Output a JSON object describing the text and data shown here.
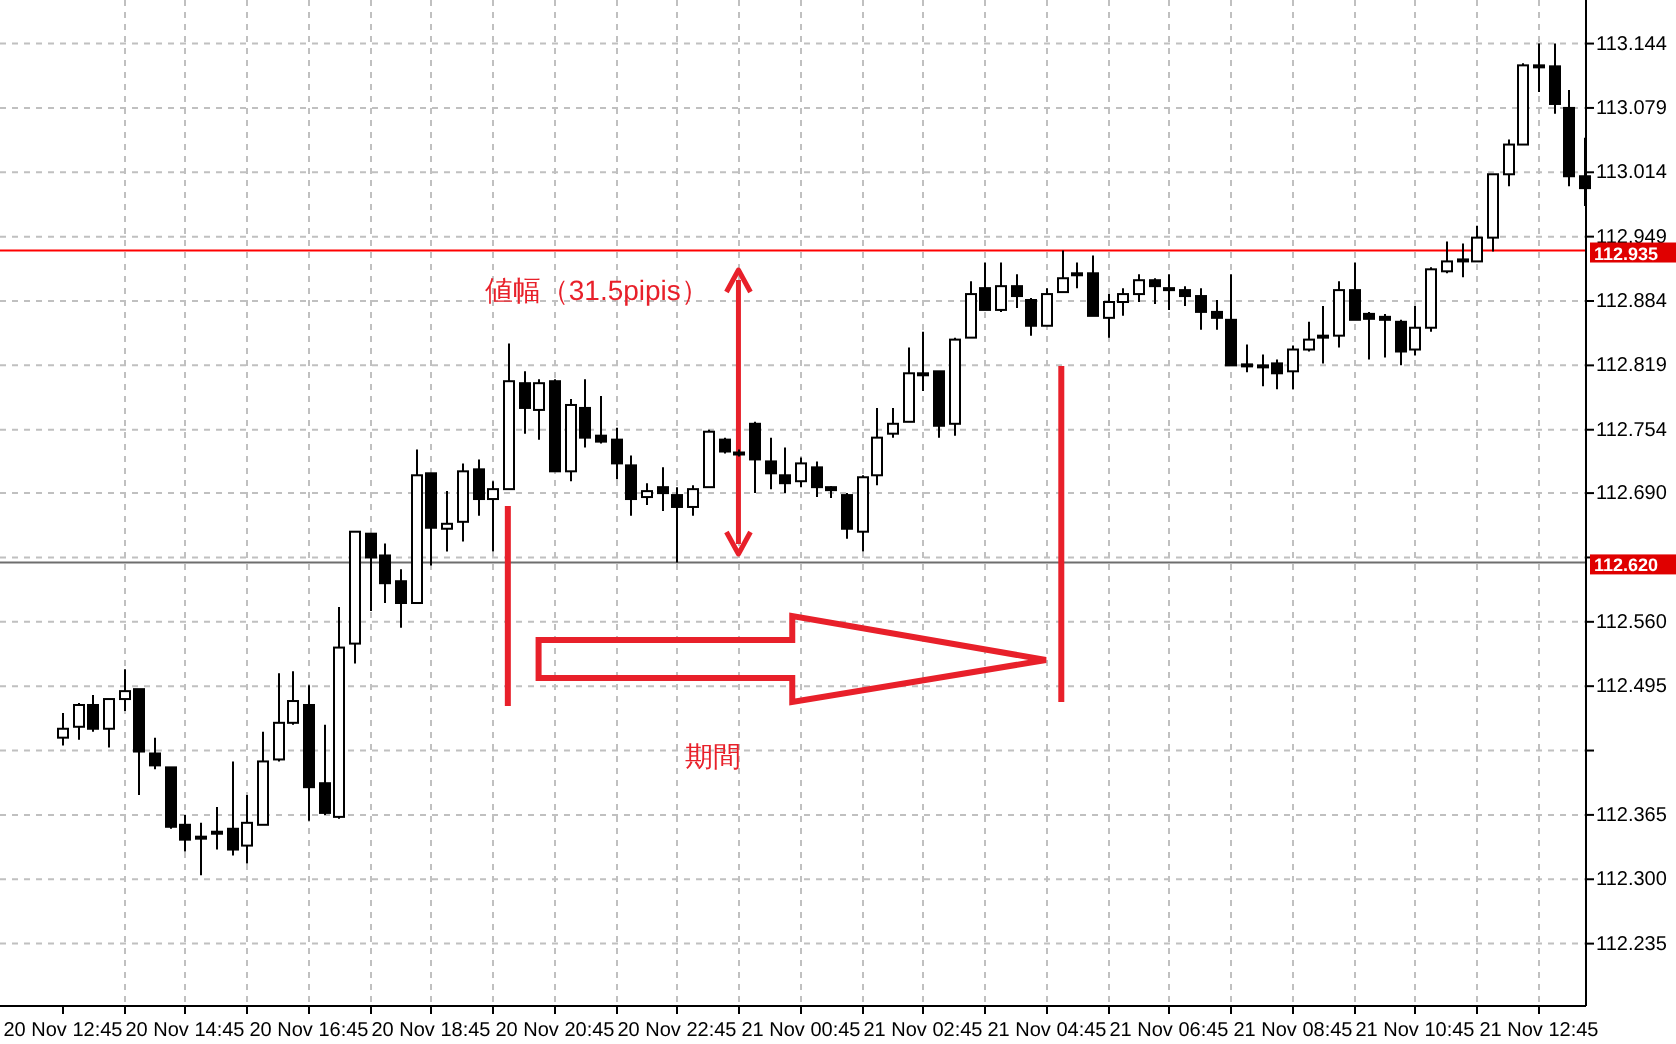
{
  "chart_data": {
    "type": "candlestick",
    "annotations": [
      "値幅（31.5pipis）",
      "期間"
    ],
    "categories": [
      "20 Nov 12:45",
      null,
      null,
      null,
      null,
      null,
      null,
      null,
      "20 Nov 14:45",
      null,
      null,
      null,
      null,
      null,
      null,
      null,
      "20 Nov 16:45",
      null,
      null,
      null,
      null,
      null,
      null,
      null,
      "20 Nov 18:45",
      null,
      null,
      null,
      null,
      null,
      null,
      null,
      "20 Nov 20:45",
      null,
      null,
      null,
      null,
      null,
      null,
      null,
      "20 Nov 22:45",
      null,
      null,
      null,
      null,
      null,
      null,
      null,
      "21 Nov 00:45",
      null,
      null,
      null,
      null,
      null,
      null,
      null,
      "21 Nov 02:45",
      null,
      null,
      null,
      null,
      null,
      null,
      null,
      "21 Nov 04:45",
      null,
      null,
      null,
      null,
      null,
      null,
      null,
      "21 Nov 06:45",
      null,
      null,
      null,
      null,
      null,
      null,
      null,
      "21 Nov 08:45",
      null,
      null,
      null,
      null,
      null,
      null,
      null,
      "21 Nov 10:45",
      null,
      null,
      null,
      null,
      null,
      null,
      null,
      "21 Nov 12:45",
      null,
      null,
      null
    ],
    "ohlc": [
      [
        112.443,
        112.468,
        112.435,
        112.452
      ],
      [
        112.454,
        112.478,
        112.441,
        112.476
      ],
      [
        112.476,
        112.486,
        112.449,
        112.452
      ],
      [
        112.452,
        112.482,
        112.433,
        112.482
      ],
      [
        112.482,
        112.512,
        112.47,
        112.49
      ],
      [
        112.492,
        112.492,
        112.385,
        112.429
      ],
      [
        112.427,
        112.443,
        112.411,
        112.415
      ],
      [
        112.413,
        112.413,
        112.351,
        112.353
      ],
      [
        112.355,
        112.365,
        112.328,
        112.34
      ],
      [
        112.343,
        112.357,
        112.304,
        112.342
      ],
      [
        112.348,
        112.373,
        112.33,
        112.346
      ],
      [
        112.351,
        112.419,
        112.324,
        112.33
      ],
      [
        112.334,
        112.385,
        112.316,
        112.357
      ],
      [
        112.355,
        112.449,
        112.355,
        112.419
      ],
      [
        112.421,
        112.508,
        112.419,
        112.458
      ],
      [
        112.458,
        112.51,
        112.456,
        112.48
      ],
      [
        112.476,
        112.496,
        112.359,
        112.393
      ],
      [
        112.397,
        112.456,
        112.365,
        112.367
      ],
      [
        112.363,
        112.575,
        112.361,
        112.534
      ],
      [
        112.538,
        112.651,
        112.518,
        112.651
      ],
      [
        112.649,
        112.649,
        112.571,
        112.625
      ],
      [
        112.627,
        112.639,
        112.579,
        112.599
      ],
      [
        112.601,
        112.613,
        112.554,
        112.579
      ],
      [
        112.579,
        112.734,
        112.579,
        112.708
      ],
      [
        112.71,
        112.71,
        112.617,
        112.655
      ],
      [
        112.654,
        112.692,
        112.631,
        112.659
      ],
      [
        112.661,
        112.72,
        112.641,
        112.712
      ],
      [
        112.714,
        112.724,
        112.667,
        112.684
      ],
      [
        112.684,
        112.702,
        112.631,
        112.694
      ],
      [
        112.694,
        112.841,
        112.694,
        112.803
      ],
      [
        112.801,
        112.813,
        112.75,
        112.776
      ],
      [
        112.774,
        112.805,
        112.744,
        112.801
      ],
      [
        112.803,
        112.805,
        112.712,
        112.712
      ],
      [
        112.712,
        112.785,
        112.702,
        112.779
      ],
      [
        112.776,
        112.805,
        112.736,
        112.746
      ],
      [
        112.748,
        112.788,
        112.74,
        112.742
      ],
      [
        112.744,
        112.756,
        112.704,
        112.72
      ],
      [
        112.718,
        112.728,
        112.667,
        112.684
      ],
      [
        112.686,
        112.7,
        112.678,
        112.692
      ],
      [
        112.696,
        112.716,
        112.672,
        112.69
      ],
      [
        112.688,
        112.696,
        112.62,
        112.676
      ],
      [
        112.676,
        112.698,
        112.667,
        112.694
      ],
      [
        112.696,
        112.754,
        112.696,
        112.752
      ],
      [
        112.744,
        112.746,
        112.73,
        112.732
      ],
      [
        112.731,
        112.734,
        112.727,
        112.729
      ],
      [
        112.76,
        112.762,
        112.69,
        112.724
      ],
      [
        112.722,
        112.746,
        112.694,
        112.71
      ],
      [
        112.708,
        112.736,
        112.69,
        112.7
      ],
      [
        112.702,
        112.726,
        112.696,
        112.72
      ],
      [
        112.716,
        112.722,
        112.686,
        112.696
      ],
      [
        112.696,
        112.697,
        112.685,
        112.693
      ],
      [
        112.688,
        112.69,
        112.644,
        112.654
      ],
      [
        112.651,
        112.708,
        112.631,
        112.706
      ],
      [
        112.708,
        112.776,
        112.698,
        112.746
      ],
      [
        112.75,
        112.776,
        112.746,
        112.76
      ],
      [
        112.762,
        112.837,
        112.762,
        112.811
      ],
      [
        112.81,
        112.853,
        112.793,
        112.811
      ],
      [
        112.813,
        112.813,
        112.746,
        112.758
      ],
      [
        112.76,
        112.847,
        112.748,
        112.845
      ],
      [
        112.847,
        112.904,
        112.847,
        112.891
      ],
      [
        112.897,
        112.923,
        112.875,
        112.875
      ],
      [
        112.875,
        112.923,
        112.873,
        112.899
      ],
      [
        112.899,
        112.911,
        112.877,
        112.889
      ],
      [
        112.885,
        112.887,
        112.849,
        112.859
      ],
      [
        112.859,
        112.897,
        112.859,
        112.891
      ],
      [
        112.893,
        112.935,
        112.893,
        112.907
      ],
      [
        112.911,
        112.923,
        112.897,
        112.912
      ],
      [
        112.912,
        112.93,
        112.869,
        112.869
      ],
      [
        112.867,
        112.891,
        112.847,
        112.883
      ],
      [
        112.883,
        112.897,
        112.869,
        112.891
      ],
      [
        112.891,
        112.911,
        112.883,
        112.905
      ],
      [
        112.905,
        112.907,
        112.881,
        112.899
      ],
      [
        112.897,
        112.911,
        112.875,
        112.895
      ],
      [
        112.895,
        112.899,
        112.879,
        112.889
      ],
      [
        112.889,
        112.897,
        112.855,
        112.873
      ],
      [
        112.873,
        112.885,
        112.855,
        112.867
      ],
      [
        112.865,
        112.911,
        112.819,
        112.819
      ],
      [
        112.82,
        112.84,
        112.812,
        112.819
      ],
      [
        112.819,
        112.83,
        112.798,
        112.818
      ],
      [
        112.821,
        112.825,
        112.795,
        112.811
      ],
      [
        112.813,
        112.839,
        112.795,
        112.835
      ],
      [
        112.835,
        112.863,
        112.833,
        112.845
      ],
      [
        112.848,
        112.879,
        112.821,
        112.849
      ],
      [
        112.849,
        112.904,
        112.837,
        112.895
      ],
      [
        112.895,
        112.923,
        112.865,
        112.865
      ],
      [
        112.871,
        112.873,
        112.825,
        112.866
      ],
      [
        112.868,
        112.871,
        112.827,
        112.865
      ],
      [
        112.863,
        112.865,
        112.819,
        112.833
      ],
      [
        112.835,
        112.879,
        112.829,
        112.857
      ],
      [
        112.857,
        112.918,
        112.853,
        112.916
      ],
      [
        112.914,
        112.944,
        112.912,
        112.924
      ],
      [
        112.925,
        112.942,
        112.908,
        112.926
      ],
      [
        112.924,
        112.96,
        112.924,
        112.948
      ],
      [
        112.948,
        113.012,
        112.934,
        113.012
      ],
      [
        113.012,
        113.047,
        113.0,
        113.042
      ],
      [
        113.042,
        113.124,
        113.042,
        113.122
      ],
      [
        113.121,
        113.144,
        113.095,
        113.122
      ],
      [
        113.121,
        113.144,
        113.073,
        113.083
      ],
      [
        113.079,
        113.097,
        113.0,
        113.01
      ],
      [
        113.01,
        113.049,
        112.98,
        112.998
      ]
    ],
    "ylim": [
      112.172,
      113.188
    ],
    "yticks": [
      113.144,
      113.079,
      113.014,
      112.949,
      112.884,
      112.819,
      112.754,
      {
        "value": 112.69,
        "label": "112.690"
      },
      {
        "value": 112.625,
        "label": null
      },
      {
        "value": 112.56,
        "label": "112.560"
      },
      112.495,
      {
        "value": 112.43,
        "label": null
      },
      112.365,
      {
        "value": 112.3,
        "label": "112.300"
      },
      112.235
    ],
    "ref_lines": [
      {
        "axis": "y",
        "value": 112.935,
        "label": "112.935",
        "color": "#ff0000"
      },
      {
        "axis": "y",
        "value": 112.62,
        "label": "112.620",
        "color": "#6e6e6e"
      }
    ],
    "grid": true
  }
}
